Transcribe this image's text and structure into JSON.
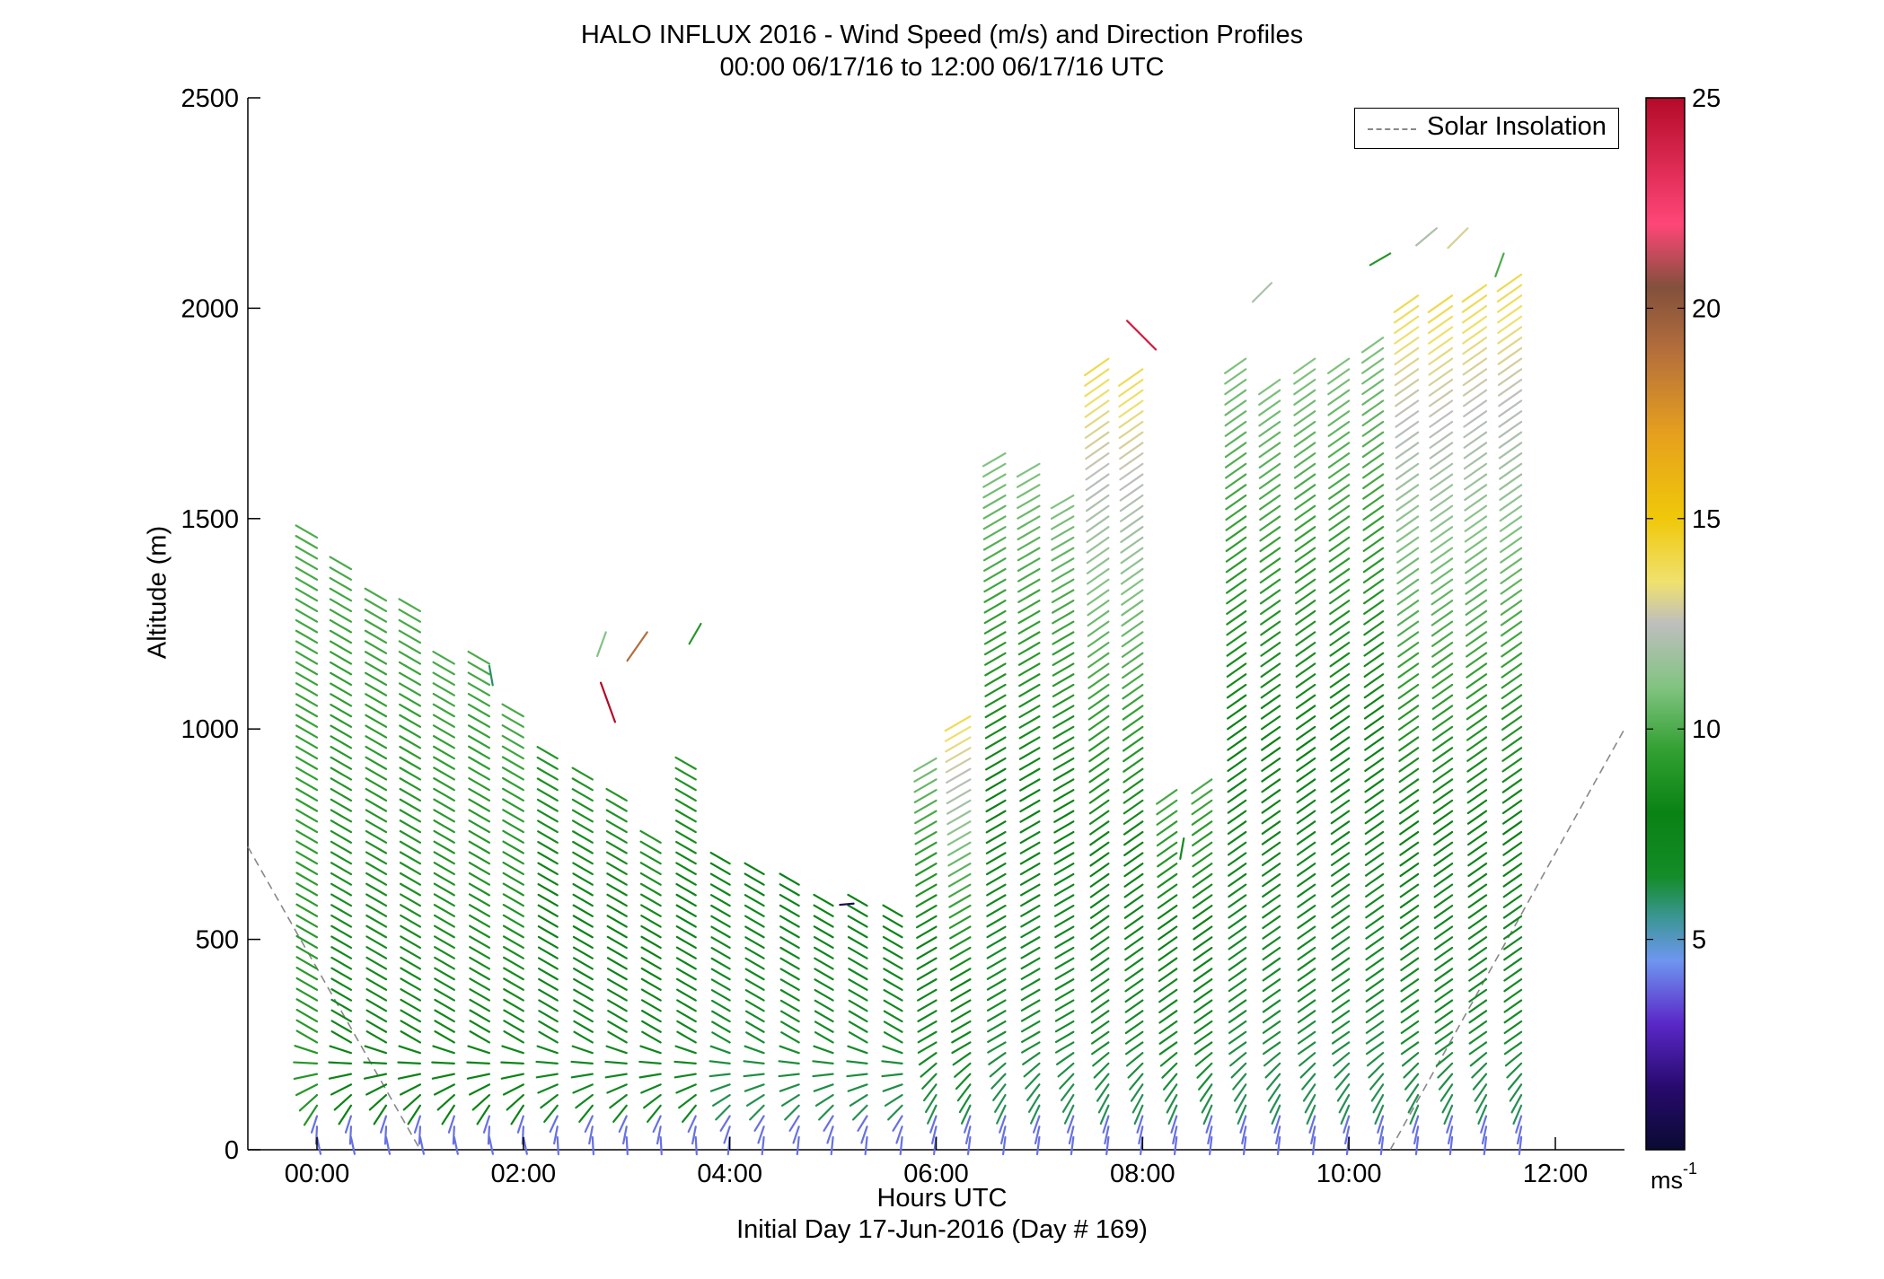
{
  "title": {
    "line1": "HALO INFLUX 2016 - Wind Speed (m/s) and Direction Profiles",
    "line2": "00:00 06/17/16 to 12:00 06/17/16  UTC"
  },
  "legend": {
    "label": "Solar Insolation",
    "line_color": "#888888"
  },
  "colorbar": {
    "ticks": [
      "25",
      "20",
      "15",
      "10",
      "5"
    ],
    "unit_base": "ms",
    "unit_exp": "-1",
    "range": [
      0,
      25
    ]
  },
  "chart_data": {
    "type": "wind-barb-profile",
    "title": "HALO INFLUX 2016 - Wind Speed (m/s) and Direction Profiles",
    "subtitle": "00:00 06/17/16 to 12:00 06/17/16  UTC",
    "xlabel": "Hours UTC",
    "xlabel2": "Initial Day 17-Jun-2016 (Day # 169)",
    "ylabel": "Altitude (m)",
    "xlim": [
      -0.67,
      12.67
    ],
    "ylim": [
      0,
      2500
    ],
    "x_ticks": [
      "00:00",
      "02:00",
      "04:00",
      "06:00",
      "08:00",
      "10:00",
      "12:00"
    ],
    "y_ticks": [
      "0",
      "500",
      "1000",
      "1500",
      "2000",
      "2500"
    ],
    "grid": false,
    "legend_position": "top-right",
    "solar_insolation": [
      {
        "x": [
          -0.67,
          1.0
        ],
        "y": [
          720,
          0
        ]
      },
      {
        "x": [
          10.4,
          12.67
        ],
        "y": [
          0,
          1000
        ]
      }
    ],
    "profiles": [
      {
        "time": 0.0,
        "top": 1460,
        "speed_low": 9,
        "speed_high": 10,
        "dir_low": 150,
        "dir_high": 300
      },
      {
        "time": 0.33,
        "top": 1400,
        "speed_low": 8,
        "speed_high": 10,
        "dir_low": 150,
        "dir_high": 300
      },
      {
        "time": 0.67,
        "top": 1320,
        "speed_low": 8,
        "speed_high": 10,
        "dir_low": 150,
        "dir_high": 300
      },
      {
        "time": 1.0,
        "top": 1280,
        "speed_low": 8,
        "speed_high": 10,
        "dir_low": 150,
        "dir_high": 300
      },
      {
        "time": 1.33,
        "top": 1160,
        "speed_low": 8,
        "speed_high": 10,
        "dir_low": 150,
        "dir_high": 300
      },
      {
        "time": 1.67,
        "top": 1170,
        "speed_low": 8,
        "speed_high": 10,
        "dir_low": 150,
        "dir_high": 300
      },
      {
        "time": 2.0,
        "top": 1050,
        "speed_low": 8,
        "speed_high": 10,
        "dir_low": 150,
        "dir_high": 300
      },
      {
        "time": 2.33,
        "top": 950,
        "speed_low": 7,
        "speed_high": 9,
        "dir_low": 160,
        "dir_high": 300
      },
      {
        "time": 2.67,
        "top": 880,
        "speed_low": 7,
        "speed_high": 9,
        "dir_low": 160,
        "dir_high": 300
      },
      {
        "time": 3.0,
        "top": 840,
        "speed_low": 7,
        "speed_high": 9,
        "dir_low": 160,
        "dir_high": 300
      },
      {
        "time": 3.33,
        "top": 740,
        "speed_low": 7,
        "speed_high": 9,
        "dir_low": 160,
        "dir_high": 300
      },
      {
        "time": 3.67,
        "top": 910,
        "speed_low": 7,
        "speed_high": 9,
        "dir_low": 160,
        "dir_high": 300
      },
      {
        "time": 4.0,
        "top": 700,
        "speed_low": 6,
        "speed_high": 8,
        "dir_low": 170,
        "dir_high": 300
      },
      {
        "time": 4.33,
        "top": 670,
        "speed_low": 6,
        "speed_high": 8,
        "dir_low": 170,
        "dir_high": 300
      },
      {
        "time": 4.67,
        "top": 640,
        "speed_low": 6,
        "speed_high": 8,
        "dir_low": 170,
        "dir_high": 300
      },
      {
        "time": 5.0,
        "top": 580,
        "speed_low": 6,
        "speed_high": 8,
        "dir_low": 170,
        "dir_high": 300
      },
      {
        "time": 5.33,
        "top": 590,
        "speed_low": 6,
        "speed_high": 8,
        "dir_low": 170,
        "dir_high": 300
      },
      {
        "time": 5.67,
        "top": 570,
        "speed_low": 6,
        "speed_high": 8,
        "dir_low": 170,
        "dir_high": 300
      },
      {
        "time": 6.0,
        "top": 950,
        "speed_low": 6,
        "speed_high": 11,
        "dir_low": 180,
        "dir_high": 240
      },
      {
        "time": 6.33,
        "top": 1040,
        "speed_low": 6,
        "speed_high": 14,
        "dir_low": 180,
        "dir_high": 240
      },
      {
        "time": 6.67,
        "top": 1660,
        "speed_low": 6,
        "speed_high": 11,
        "dir_low": 180,
        "dir_high": 240
      },
      {
        "time": 7.0,
        "top": 1630,
        "speed_low": 6,
        "speed_high": 11,
        "dir_low": 180,
        "dir_high": 240
      },
      {
        "time": 7.33,
        "top": 1560,
        "speed_low": 6,
        "speed_high": 11,
        "dir_low": 180,
        "dir_high": 240
      },
      {
        "time": 7.67,
        "top": 1880,
        "speed_low": 6,
        "speed_high": 14,
        "dir_low": 180,
        "dir_high": 235
      },
      {
        "time": 8.0,
        "top": 1870,
        "speed_low": 6,
        "speed_high": 14,
        "dir_low": 180,
        "dir_high": 235
      },
      {
        "time": 8.33,
        "top": 870,
        "speed_low": 6,
        "speed_high": 10,
        "dir_low": 180,
        "dir_high": 235
      },
      {
        "time": 8.67,
        "top": 890,
        "speed_low": 6,
        "speed_high": 10,
        "dir_low": 180,
        "dir_high": 235
      },
      {
        "time": 9.0,
        "top": 1900,
        "speed_low": 6,
        "speed_high": 11,
        "dir_low": 180,
        "dir_high": 235
      },
      {
        "time": 9.33,
        "top": 1850,
        "speed_low": 6,
        "speed_high": 11,
        "dir_low": 180,
        "dir_high": 235
      },
      {
        "time": 9.67,
        "top": 1880,
        "speed_low": 6,
        "speed_high": 11,
        "dir_low": 180,
        "dir_high": 235
      },
      {
        "time": 10.0,
        "top": 1900,
        "speed_low": 6,
        "speed_high": 11,
        "dir_low": 180,
        "dir_high": 235
      },
      {
        "time": 10.33,
        "top": 1940,
        "speed_low": 6,
        "speed_high": 11,
        "dir_low": 180,
        "dir_high": 235
      },
      {
        "time": 10.67,
        "top": 2040,
        "speed_low": 6,
        "speed_high": 14,
        "dir_low": 180,
        "dir_high": 235
      },
      {
        "time": 11.0,
        "top": 2030,
        "speed_low": 6,
        "speed_high": 14,
        "dir_low": 180,
        "dir_high": 235
      },
      {
        "time": 11.33,
        "top": 2060,
        "speed_low": 6,
        "speed_high": 14,
        "dir_low": 180,
        "dir_high": 235
      },
      {
        "time": 11.67,
        "top": 2080,
        "speed_low": 6,
        "speed_high": 14,
        "dir_low": 180,
        "dir_high": 235
      }
    ],
    "isolated_barbs": [
      {
        "time": 1.67,
        "alt": 1150,
        "speed": 6,
        "dir": 170
      },
      {
        "time": 2.75,
        "alt": 1110,
        "speed": 25,
        "dir": 160
      },
      {
        "time": 2.8,
        "alt": 1230,
        "speed": 11,
        "dir": 200
      },
      {
        "time": 3.2,
        "alt": 1230,
        "speed": 19,
        "dir": 215
      },
      {
        "time": 3.72,
        "alt": 1250,
        "speed": 9,
        "dir": 210
      },
      {
        "time": 5.2,
        "alt": 585,
        "speed": 1,
        "dir": 265
      },
      {
        "time": 7.85,
        "alt": 1970,
        "speed": 24,
        "dir": 135
      },
      {
        "time": 8.4,
        "alt": 740,
        "speed": 7,
        "dir": 190
      },
      {
        "time": 9.25,
        "alt": 2060,
        "speed": 12,
        "dir": 225
      },
      {
        "time": 10.4,
        "alt": 2130,
        "speed": 9,
        "dir": 240
      },
      {
        "time": 10.85,
        "alt": 2190,
        "speed": 12,
        "dir": 230
      },
      {
        "time": 11.15,
        "alt": 2190,
        "speed": 13,
        "dir": 225
      },
      {
        "time": 11.5,
        "alt": 2130,
        "speed": 10,
        "dir": 200
      }
    ]
  }
}
